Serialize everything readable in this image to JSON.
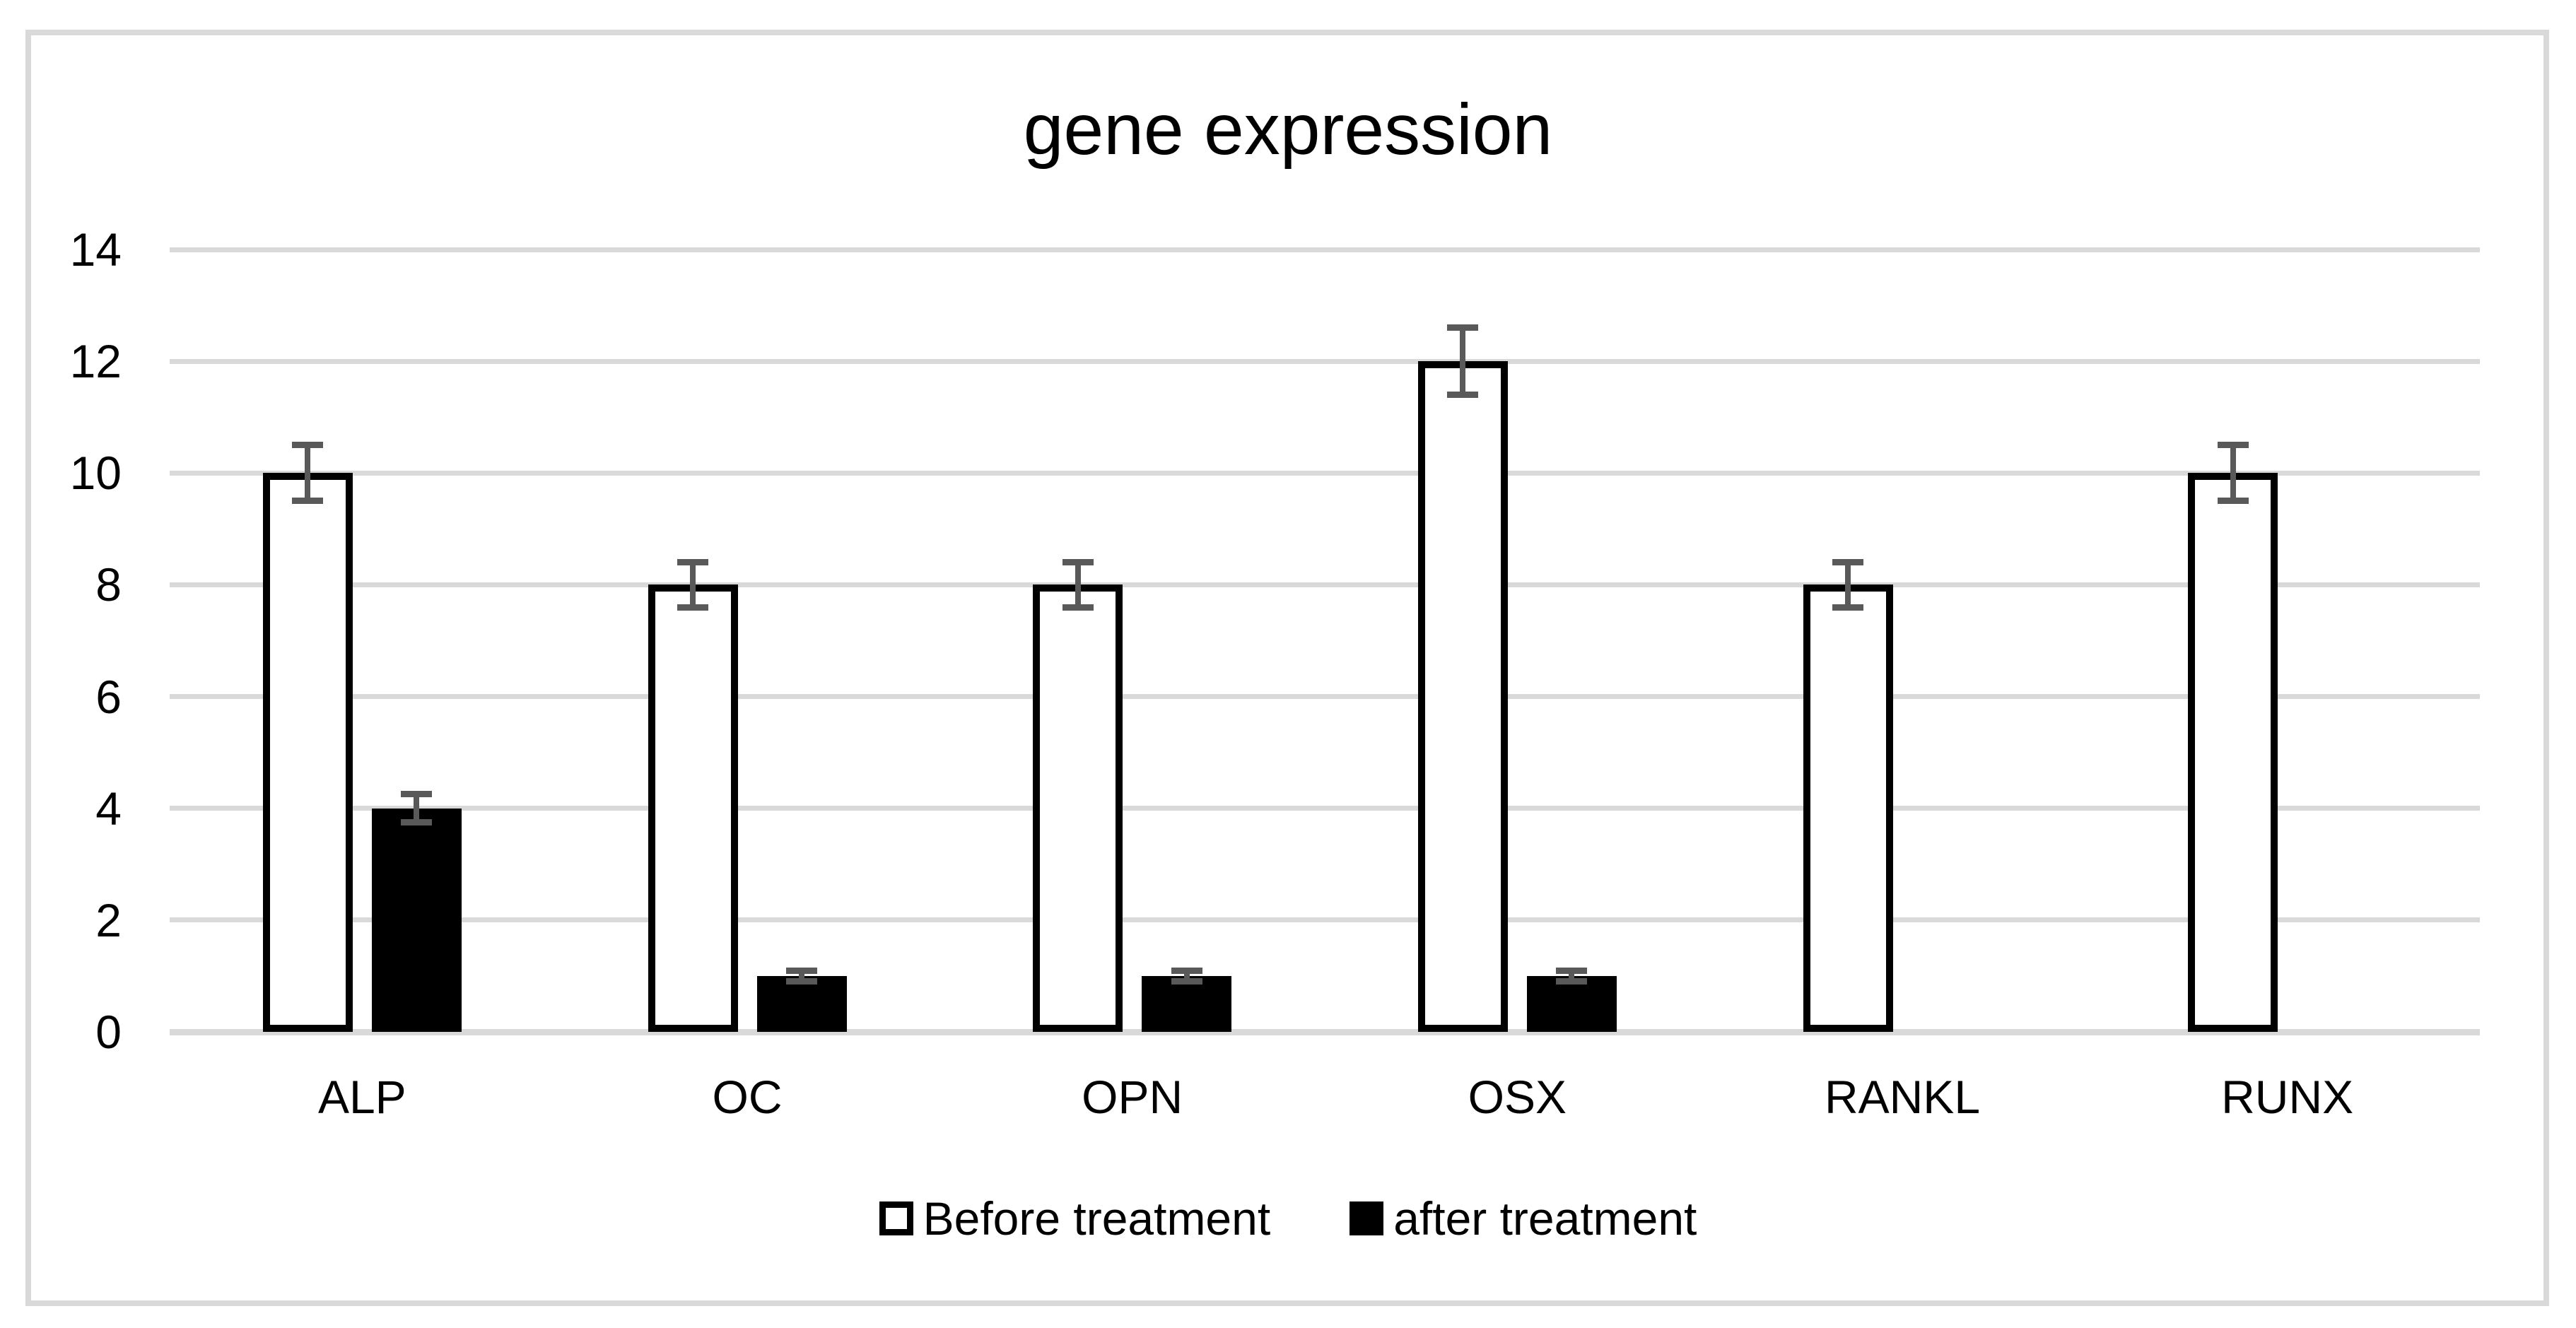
{
  "title": "gene expression",
  "colors": {
    "background": "#ffffff",
    "frame": "#d9d9d9",
    "gridline": "#d9d9d9",
    "error_bar": "#595959",
    "text": "#000000",
    "bar_outline": "#000000",
    "before_fill": "#ffffff",
    "after_fill": "#000000"
  },
  "legend": {
    "items": [
      {
        "label": "Before treatment",
        "swatch": "outlined-white-square"
      },
      {
        "label": "after treatment",
        "swatch": "filled-black-square"
      }
    ]
  },
  "chart_data": {
    "type": "bar",
    "title": "gene expression",
    "categories": [
      "ALP",
      "OC",
      "OPN",
      "OSX",
      "RANKL",
      "RUNX"
    ],
    "series": [
      {
        "name": "Before treatment",
        "fill": "#ffffff",
        "outline": "#000000",
        "values": [
          10,
          8,
          8,
          12,
          8,
          10
        ],
        "errors": [
          0.5,
          0.4,
          0.4,
          0.6,
          0.4,
          0.5
        ]
      },
      {
        "name": "after treatment",
        "fill": "#000000",
        "outline": "#000000",
        "values": [
          4,
          1,
          1,
          1,
          0,
          0
        ],
        "errors": [
          0.25,
          0.1,
          0.1,
          0.1,
          0,
          0
        ]
      }
    ],
    "xlabel": "",
    "ylabel": "",
    "ylim": [
      0,
      14
    ],
    "ytick_step": 2,
    "yticks": [
      "0",
      "2",
      "4",
      "6",
      "8",
      "10",
      "12",
      "14"
    ],
    "grid": true,
    "error_bars": true,
    "legend_position": "bottom"
  }
}
